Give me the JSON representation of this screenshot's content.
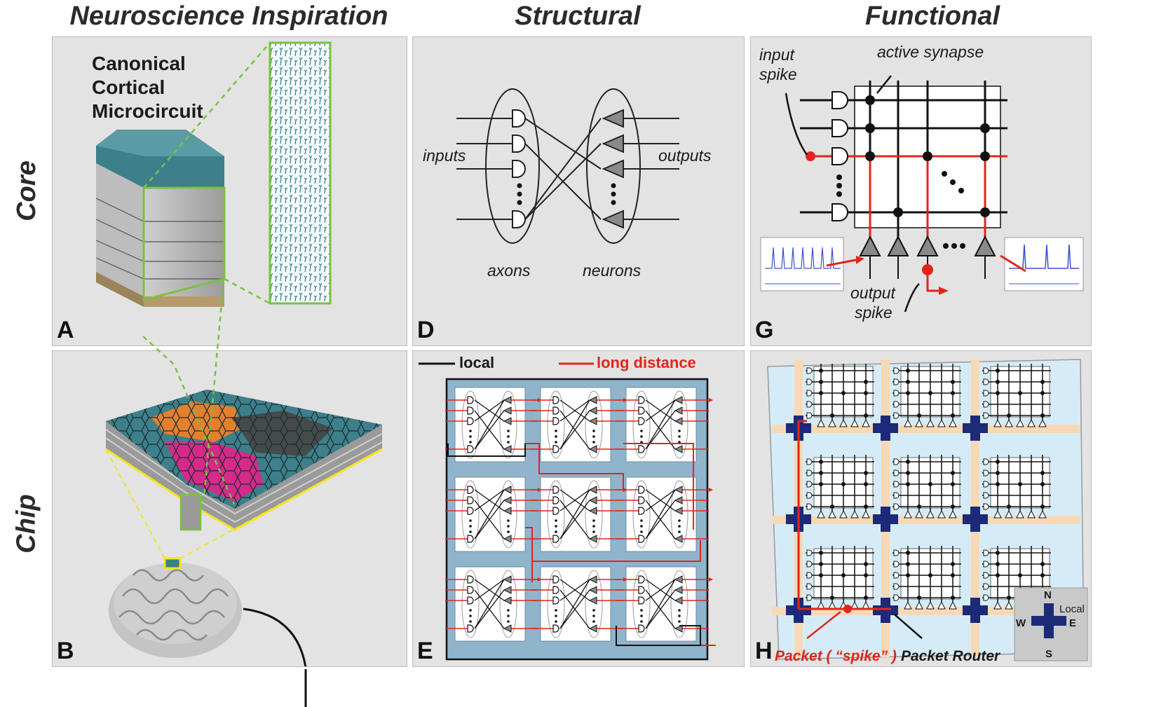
{
  "columns": {
    "neuroscience": "Neuroscience Inspiration",
    "structural": "Structural",
    "functional": "Functional"
  },
  "rows": {
    "core": "Core",
    "chip": "Chip"
  },
  "panels": {
    "A": {
      "label": "A",
      "title_line1": "Canonical",
      "title_line2": "Cortical",
      "title_line3": "Microcircuit"
    },
    "B": {
      "label": "B"
    },
    "D": {
      "label": "D",
      "inputs": "inputs",
      "outputs": "outputs",
      "axons": "axons",
      "neurons": "neurons"
    },
    "E": {
      "label": "E",
      "legend_local": "local",
      "legend_long": "long distance"
    },
    "G": {
      "label": "G",
      "input_spike_1": "input",
      "input_spike_2": "spike",
      "active_synapse": "active synapse",
      "output_spike_1": "output",
      "output_spike_2": "spike"
    },
    "H": {
      "label": "H",
      "packet": "Packet ( “spike” )",
      "packet_router": "Packet Router",
      "compass_n": "N",
      "compass_s": "S",
      "compass_e": "E",
      "compass_w": "W",
      "compass_local": "Local"
    }
  },
  "colors": {
    "panel_bg": "#e3e3e3",
    "teal": "#3d7f8a",
    "orange": "#e3802e",
    "magenta": "#d42a8a",
    "dark": "#454a4a",
    "red": "#e3241b",
    "green": "#7ac143",
    "yellow": "#f4e41c",
    "navy": "#1c2a78",
    "chip_blue": "#8fb4cc",
    "light_blue": "#d5ecf8",
    "peach": "#f8d9b5"
  }
}
